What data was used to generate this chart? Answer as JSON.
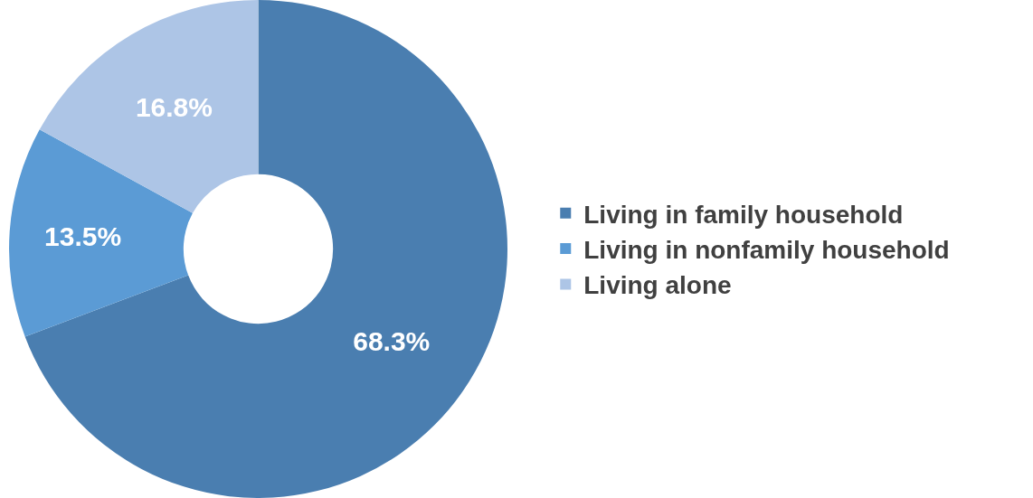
{
  "chart_data": {
    "type": "donut",
    "categories": [
      "Living in family household",
      "Living in nonfamily household",
      "Living alone"
    ],
    "values": [
      68.3,
      13.5,
      16.8
    ],
    "colors": [
      "#4a7eb0",
      "#5b9bd5",
      "#adc5e6"
    ],
    "value_labels": [
      "68.3%",
      "13.5%",
      "16.8%"
    ],
    "legend": "right"
  }
}
